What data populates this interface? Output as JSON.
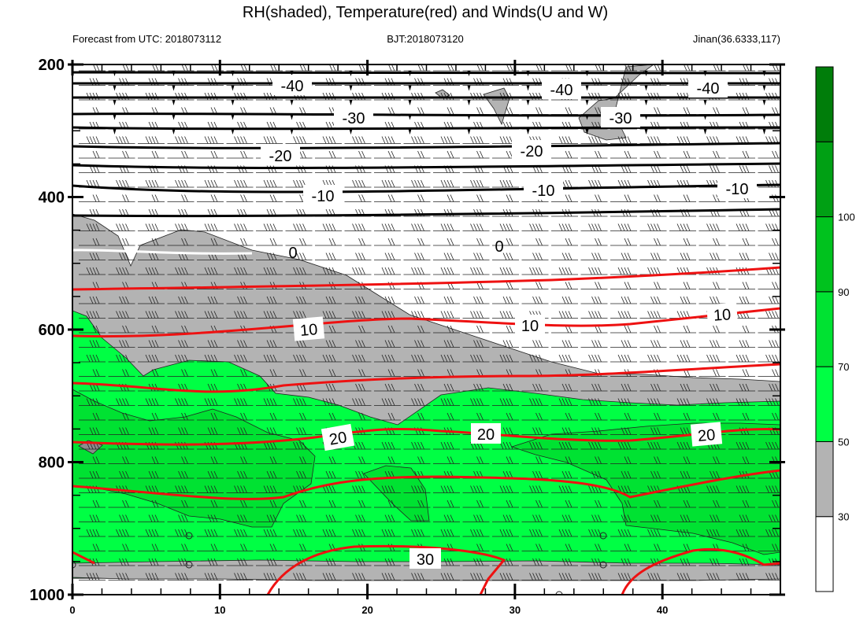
{
  "chart_data": {
    "type": "heatmap",
    "title": "RH(shaded), Temperature(red) and Winds(U and W)",
    "subtitle_left": "Forecast from UTC: 2018073112",
    "subtitle_center": "BJT:2018073120",
    "subtitle_right": "Jinan(36.6333,117)",
    "xlim": [
      0,
      48
    ],
    "ylim": [
      1000,
      200
    ],
    "x_ticks": [
      "0",
      "10",
      "20",
      "30",
      "40"
    ],
    "y_ticks": [
      "200",
      "400",
      "600",
      "800",
      "1000"
    ],
    "colorbar": {
      "ticks": [
        "30",
        "50",
        "70",
        "90",
        "100"
      ],
      "colors": [
        "#ffffff",
        "#b3b3b3",
        "#00ff44",
        "#00e232",
        "#00c21e",
        "#00a014",
        "#007d0a"
      ]
    },
    "temperature_labels": {
      "black": [
        "-40",
        "-40",
        "-40",
        "-30",
        "-30",
        "-20",
        "-20",
        "-10",
        "-10",
        "-10"
      ],
      "zero": [
        "0",
        "0"
      ],
      "red": [
        "10",
        "10",
        "10",
        "20",
        "20",
        "20",
        "30"
      ]
    }
  },
  "colors": {
    "temp_warm": "#ee1111",
    "temp_cold": "#000000",
    "temp_zero": "#ffffff",
    "rh_grey": "#b3b3b3"
  }
}
